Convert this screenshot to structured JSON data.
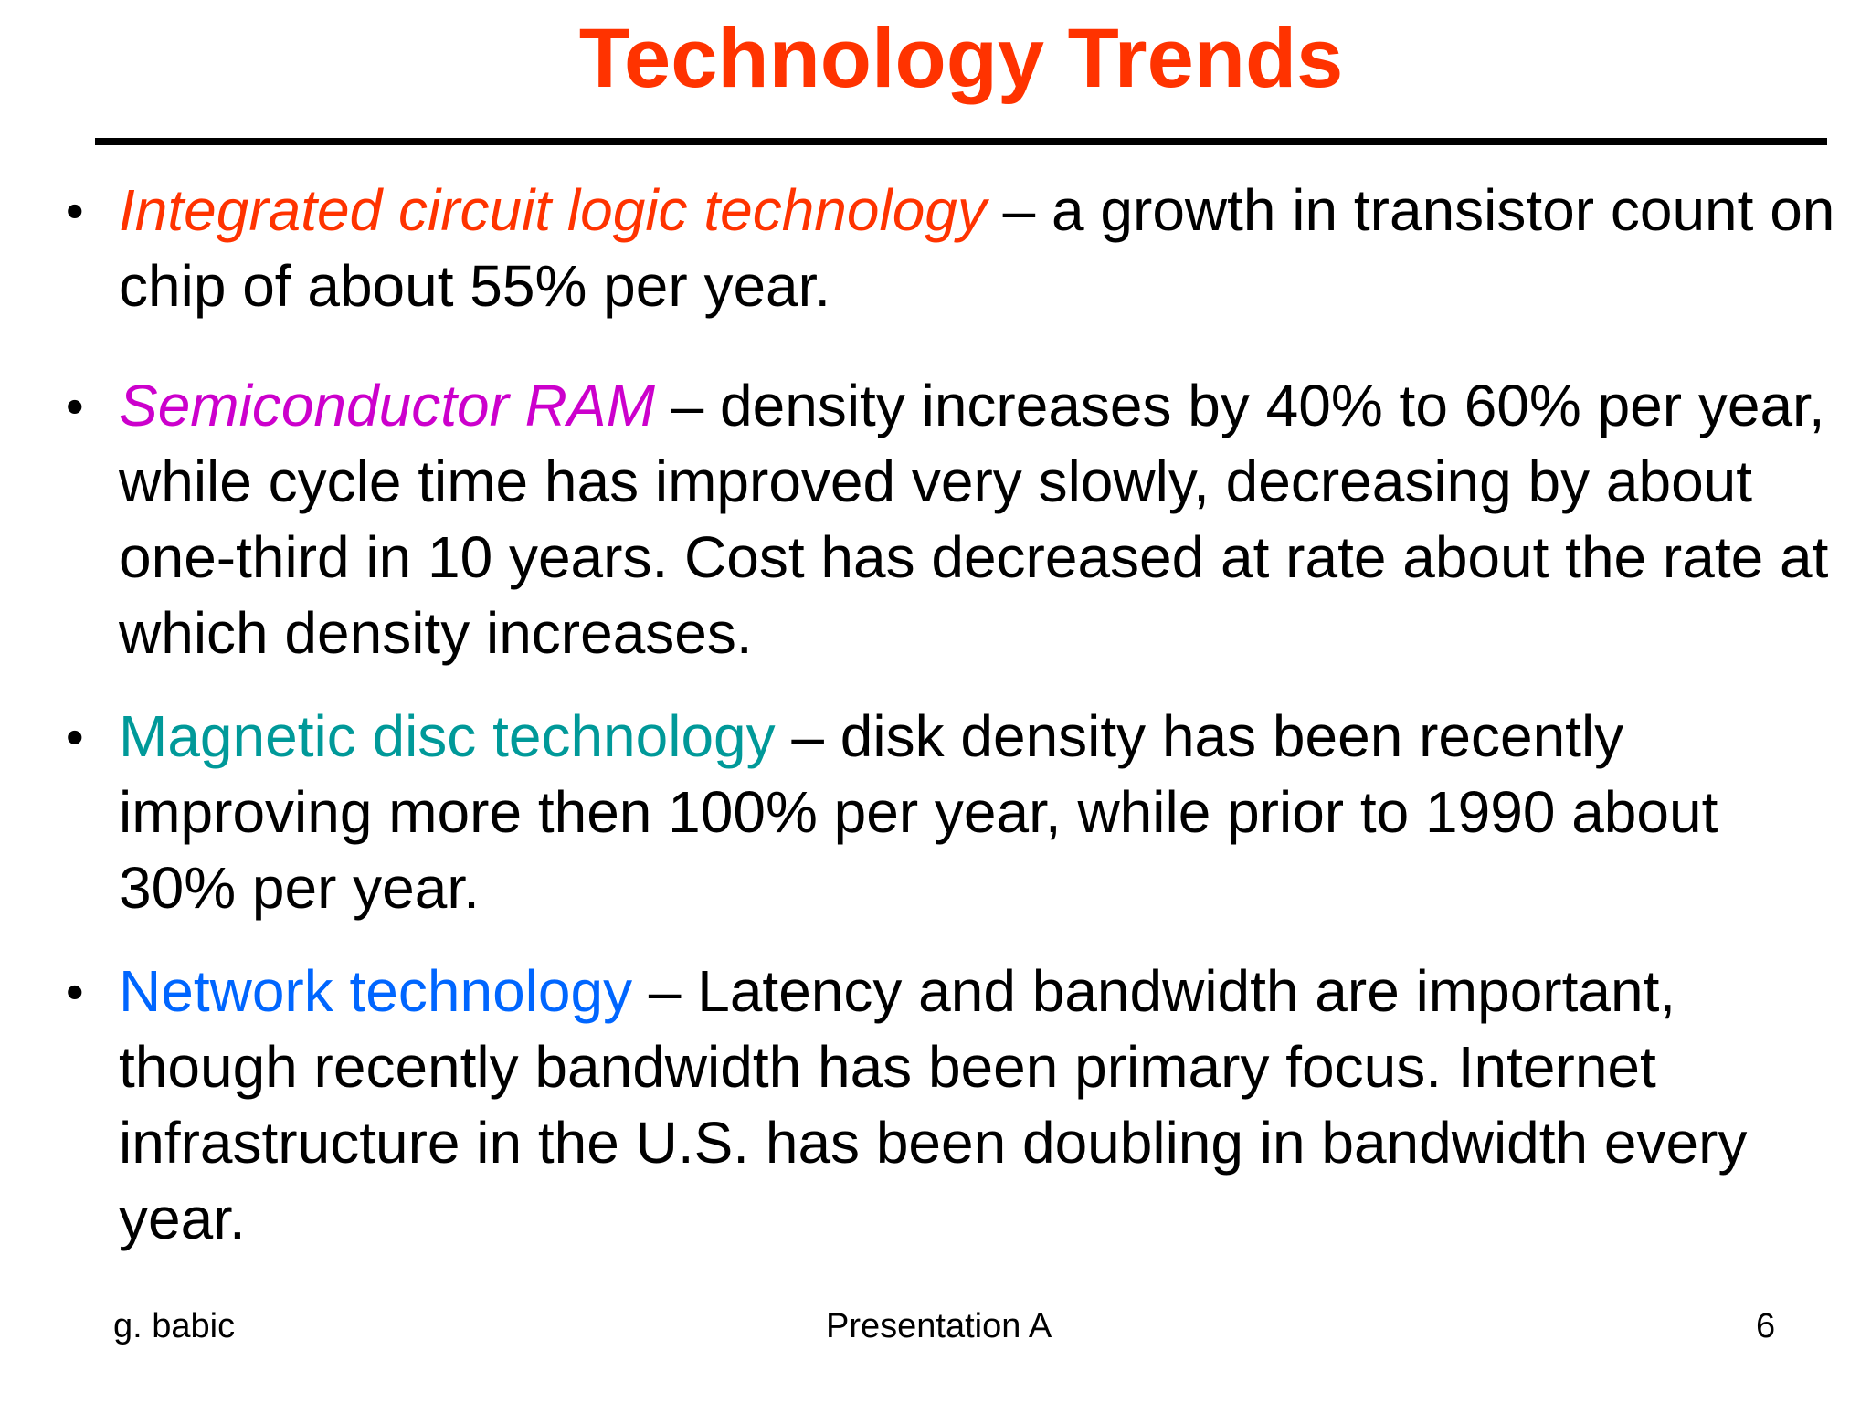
{
  "slide": {
    "title": "Technology Trends",
    "colors": {
      "title": "#ff3300",
      "term1": "#ff3300",
      "term2": "#cc00cc",
      "term3": "#009999",
      "term4": "#0066ff"
    },
    "bullets": [
      {
        "term": "Integrated circuit logic technology",
        "rest": " – a growth in transistor count on chip of about 55% per year."
      },
      {
        "term": "Semiconductor RAM",
        "rest": " – density increases by 40% to 60% per year, while cycle time has improved very slowly, decreasing by about one-third in 10 years. Cost has decreased at rate about the rate at which density increases."
      },
      {
        "term": "Magnetic disc technology",
        "rest": " – disk density has been recently improving more then 100% per year, while prior to 1990 about 30% per year."
      },
      {
        "term": "Network technology",
        "rest": " – Latency and bandwidth are important, though recently bandwidth has been primary focus. Internet infrastructure in the U.S. has been doubling in bandwidth every year."
      }
    ],
    "bullet_symbol": "•",
    "footer": {
      "author": "g. babic",
      "center": "Presentation A",
      "page": "6"
    }
  }
}
